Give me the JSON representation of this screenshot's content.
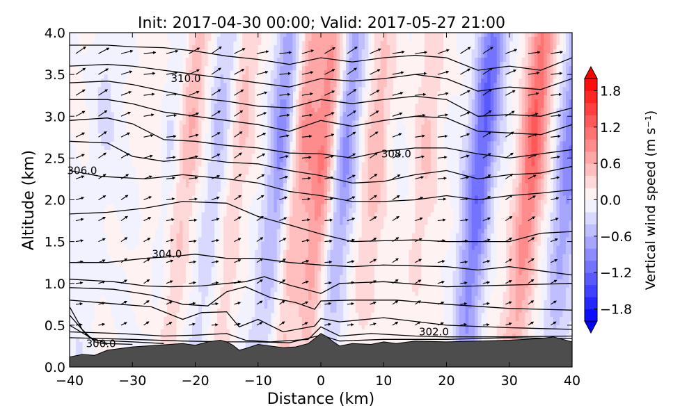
{
  "chart_data": {
    "type": "heatmap",
    "title": "Init: 2017-04-30 00:00; Valid: 2017-05-27 21:00",
    "xlabel": "Distance (km)",
    "ylabel": "Altitude (km)",
    "xlim": [
      -40,
      40
    ],
    "ylim": [
      0.0,
      4.0
    ],
    "x_ticks": [
      -40,
      -30,
      -20,
      -10,
      0,
      10,
      20,
      30,
      40
    ],
    "x_tick_labels": [
      "−40",
      "−30",
      "−20",
      "−10",
      "0",
      "10",
      "20",
      "30",
      "40"
    ],
    "y_ticks": [
      0.0,
      0.5,
      1.0,
      1.5,
      2.0,
      2.5,
      3.0,
      3.5,
      4.0
    ],
    "y_tick_labels": [
      "0.0",
      "0.5",
      "1.0",
      "1.5",
      "2.0",
      "2.5",
      "3.0",
      "3.5",
      "4.0"
    ],
    "colorbar": {
      "label": "Vertical wind speed (m s⁻¹)",
      "vmin": -2.0,
      "vmax": 2.0,
      "levels": [
        -2.0,
        -1.8,
        -1.6,
        -1.4,
        -1.2,
        -1.0,
        -0.8,
        -0.6,
        -0.4,
        -0.2,
        0.0,
        0.2,
        0.4,
        0.6,
        0.8,
        1.0,
        1.2,
        1.4,
        1.6,
        1.8,
        2.0
      ],
      "ticks": [
        -1.8,
        -1.2,
        -0.6,
        0.0,
        0.6,
        1.2,
        1.8
      ],
      "tick_labels": [
        "−1.8",
        "−1.2",
        "−0.6",
        "0.0",
        "0.6",
        "1.2",
        "1.8"
      ],
      "colormap": "bwr"
    },
    "updraft_bands": [
      {
        "x": -26,
        "amplitude": 0.35
      },
      {
        "x": -22,
        "amplitude": 0.6
      },
      {
        "x": -14,
        "amplitude": 0.5
      },
      {
        "x": -4,
        "amplitude": 0.8
      },
      {
        "x": 0,
        "amplitude": 1.0
      },
      {
        "x": 8,
        "amplitude": 0.5
      },
      {
        "x": 16,
        "amplitude": 0.35
      },
      {
        "x": 33,
        "amplitude": 1.2
      }
    ],
    "downdraft_bands": [
      {
        "x": -36,
        "amplitude": -0.2
      },
      {
        "x": -25,
        "amplitude": -0.5
      },
      {
        "x": -17,
        "amplitude": -0.5
      },
      {
        "x": -7,
        "amplitude": -0.9
      },
      {
        "x": 3,
        "amplitude": -0.9
      },
      {
        "x": 25,
        "amplitude": -1.3
      },
      {
        "x": 39,
        "amplitude": -0.9
      }
    ],
    "isentropes": [
      {
        "theta": 299.5,
        "points": [
          [
            -40,
            0.72
          ],
          [
            -38,
            0.45
          ],
          [
            -36,
            0.3
          ],
          [
            -34,
            0.27
          ]
        ]
      },
      {
        "theta": 300.0,
        "points": [
          [
            -40,
            0.62
          ],
          [
            -37,
            0.36
          ],
          [
            -34,
            0.28
          ],
          [
            -30,
            0.27
          ]
        ]
      },
      {
        "theta": 300.5,
        "points": [
          [
            -40,
            0.5
          ],
          [
            -36,
            0.32
          ],
          [
            -30,
            0.3
          ],
          [
            -25,
            0.28
          ]
        ]
      },
      {
        "theta": 301.0,
        "points": [
          [
            -40,
            0.35
          ],
          [
            -35,
            0.34
          ],
          [
            -30,
            0.33
          ],
          [
            -22,
            0.31
          ],
          [
            -15,
            0.3
          ],
          [
            -10,
            0.3
          ],
          [
            -5,
            0.29
          ],
          [
            0,
            0.38
          ],
          [
            3,
            0.31
          ],
          [
            10,
            0.33
          ],
          [
            20,
            0.33
          ],
          [
            30,
            0.35
          ],
          [
            40,
            0.34
          ]
        ]
      },
      {
        "theta": 302.0,
        "points": [
          [
            -40,
            0.42
          ],
          [
            -32,
            0.4
          ],
          [
            -25,
            0.37
          ],
          [
            -20,
            0.38
          ],
          [
            -15,
            0.4
          ],
          [
            -12,
            0.32
          ],
          [
            -8,
            0.3
          ],
          [
            -2,
            0.33
          ],
          [
            0,
            0.48
          ],
          [
            3,
            0.37
          ],
          [
            8,
            0.4
          ],
          [
            15,
            0.37
          ],
          [
            20,
            0.36
          ],
          [
            30,
            0.36
          ],
          [
            40,
            0.37
          ]
        ]
      },
      {
        "theta": 302.5,
        "points": [
          [
            -40,
            0.8
          ],
          [
            -32,
            0.75
          ],
          [
            -27,
            0.72
          ],
          [
            -22,
            0.57
          ],
          [
            -19,
            0.65
          ],
          [
            -15,
            0.66
          ],
          [
            -13,
            0.48
          ],
          [
            -10,
            0.57
          ],
          [
            -6,
            0.42
          ],
          [
            -1,
            0.49
          ],
          [
            0,
            0.58
          ],
          [
            3,
            0.54
          ],
          [
            10,
            0.59
          ],
          [
            20,
            0.5
          ],
          [
            30,
            0.47
          ],
          [
            40,
            0.45
          ]
        ]
      },
      {
        "theta": 303.0,
        "points": [
          [
            -40,
            0.95
          ],
          [
            -33,
            0.93
          ],
          [
            -27,
            0.86
          ],
          [
            -22,
            0.75
          ],
          [
            -18,
            0.73
          ],
          [
            -15,
            0.9
          ],
          [
            -12,
            0.96
          ],
          [
            -8,
            0.83
          ],
          [
            -4,
            0.77
          ],
          [
            -1,
            0.69
          ],
          [
            0,
            0.79
          ],
          [
            5,
            0.8
          ],
          [
            12,
            0.8
          ],
          [
            20,
            0.75
          ],
          [
            30,
            0.7
          ],
          [
            40,
            0.68
          ]
        ]
      },
      {
        "theta": 303.5,
        "points": [
          [
            -40,
            1.05
          ],
          [
            -33,
            1.02
          ],
          [
            -28,
            0.97
          ],
          [
            -24,
            0.96
          ],
          [
            -19,
            0.97
          ],
          [
            -15,
            1.0
          ],
          [
            -12,
            1.02
          ],
          [
            -9,
            1.08
          ],
          [
            -5,
            0.98
          ],
          [
            0,
            0.88
          ],
          [
            3,
            1.0
          ],
          [
            10,
            1.02
          ],
          [
            20,
            0.96
          ],
          [
            30,
            0.98
          ],
          [
            40,
            1.0
          ]
        ]
      },
      {
        "theta": 304.0,
        "points": [
          [
            -40,
            1.25
          ],
          [
            -34,
            1.25
          ],
          [
            -28,
            1.3
          ],
          [
            -24,
            1.32
          ],
          [
            -20,
            1.35
          ],
          [
            -15,
            1.3
          ],
          [
            -10,
            1.3
          ],
          [
            -5,
            1.25
          ],
          [
            0,
            1.22
          ],
          [
            5,
            1.2
          ],
          [
            10,
            1.22
          ],
          [
            20,
            1.2
          ],
          [
            25,
            1.16
          ],
          [
            30,
            1.2
          ],
          [
            40,
            1.1
          ]
        ]
      },
      {
        "theta": 305.0,
        "points": [
          [
            -40,
            1.83
          ],
          [
            -34,
            1.85
          ],
          [
            -28,
            1.9
          ],
          [
            -22,
            1.98
          ],
          [
            -15,
            1.96
          ],
          [
            -10,
            1.8
          ],
          [
            -5,
            1.7
          ],
          [
            0,
            1.59
          ],
          [
            5,
            1.5
          ],
          [
            10,
            1.51
          ],
          [
            15,
            1.52
          ],
          [
            20,
            1.5
          ],
          [
            25,
            1.5
          ],
          [
            30,
            1.5
          ],
          [
            35,
            1.6
          ],
          [
            40,
            1.62
          ]
        ]
      },
      {
        "theta": 306.0,
        "points": [
          [
            -40,
            2.35
          ],
          [
            -35,
            2.28
          ],
          [
            -28,
            2.25
          ],
          [
            -22,
            2.3
          ],
          [
            -15,
            2.25
          ],
          [
            -10,
            2.2
          ],
          [
            -5,
            2.1
          ],
          [
            0,
            2.05
          ],
          [
            5,
            1.98
          ],
          [
            10,
            1.98
          ],
          [
            15,
            2.0
          ],
          [
            20,
            2.05
          ],
          [
            25,
            2.0
          ],
          [
            30,
            2.05
          ],
          [
            35,
            2.08
          ],
          [
            40,
            2.12
          ]
        ]
      },
      {
        "theta": 307.0,
        "points": [
          [
            -40,
            2.7
          ],
          [
            -34,
            2.68
          ],
          [
            -30,
            2.52
          ],
          [
            -25,
            2.46
          ],
          [
            -20,
            2.5
          ],
          [
            -15,
            2.45
          ],
          [
            -10,
            2.43
          ],
          [
            -5,
            2.35
          ],
          [
            0,
            2.29
          ],
          [
            5,
            2.2
          ],
          [
            10,
            2.22
          ],
          [
            15,
            2.3
          ],
          [
            20,
            2.35
          ],
          [
            25,
            2.25
          ],
          [
            30,
            2.3
          ],
          [
            35,
            2.32
          ],
          [
            40,
            2.4
          ]
        ]
      },
      {
        "theta": 308.0,
        "points": [
          [
            -40,
            2.95
          ],
          [
            -34,
            2.98
          ],
          [
            -30,
            2.91
          ],
          [
            -25,
            2.72
          ],
          [
            -20,
            2.7
          ],
          [
            -15,
            2.65
          ],
          [
            -10,
            2.62
          ],
          [
            -5,
            2.56
          ],
          [
            0,
            2.55
          ],
          [
            5,
            2.5
          ],
          [
            10,
            2.58
          ],
          [
            15,
            2.62
          ],
          [
            20,
            2.62
          ],
          [
            25,
            2.55
          ],
          [
            30,
            2.5
          ],
          [
            35,
            2.55
          ],
          [
            40,
            2.6
          ]
        ]
      },
      {
        "theta": 309.0,
        "points": [
          [
            -40,
            3.2
          ],
          [
            -34,
            3.2
          ],
          [
            -30,
            3.15
          ],
          [
            -25,
            3.05
          ],
          [
            -20,
            3.0
          ],
          [
            -15,
            2.95
          ],
          [
            -10,
            2.9
          ],
          [
            -5,
            2.82
          ],
          [
            0,
            2.95
          ],
          [
            5,
            2.88
          ],
          [
            10,
            2.95
          ],
          [
            15,
            3.0
          ],
          [
            20,
            2.98
          ],
          [
            25,
            2.82
          ],
          [
            30,
            2.8
          ],
          [
            35,
            2.78
          ],
          [
            40,
            2.9
          ]
        ]
      },
      {
        "theta": 310.0,
        "points": [
          [
            -40,
            3.4
          ],
          [
            -34,
            3.42
          ],
          [
            -30,
            3.38
          ],
          [
            -25,
            3.3
          ],
          [
            -20,
            3.22
          ],
          [
            -15,
            3.18
          ],
          [
            -10,
            3.12
          ],
          [
            -5,
            3.1
          ],
          [
            0,
            3.2
          ],
          [
            5,
            3.15
          ],
          [
            10,
            3.2
          ],
          [
            15,
            3.24
          ],
          [
            20,
            3.2
          ],
          [
            25,
            3.0
          ],
          [
            30,
            3.02
          ],
          [
            35,
            3.0
          ],
          [
            40,
            3.1
          ]
        ]
      },
      {
        "theta": 311.0,
        "points": [
          [
            -40,
            3.6
          ],
          [
            -34,
            3.62
          ],
          [
            -30,
            3.6
          ],
          [
            -25,
            3.55
          ],
          [
            -20,
            3.5
          ],
          [
            -15,
            3.45
          ],
          [
            -10,
            3.4
          ],
          [
            -5,
            3.35
          ],
          [
            0,
            3.45
          ],
          [
            5,
            3.42
          ],
          [
            10,
            3.45
          ],
          [
            15,
            3.5
          ],
          [
            20,
            3.45
          ],
          [
            25,
            3.3
          ],
          [
            30,
            3.35
          ],
          [
            35,
            3.32
          ],
          [
            40,
            3.45
          ]
        ]
      },
      {
        "theta": 312.0,
        "points": [
          [
            -40,
            3.85
          ],
          [
            -34,
            3.85
          ],
          [
            -30,
            3.83
          ],
          [
            -25,
            3.82
          ],
          [
            -20,
            3.78
          ],
          [
            -15,
            3.72
          ],
          [
            -10,
            3.68
          ],
          [
            -5,
            3.62
          ],
          [
            0,
            3.7
          ],
          [
            5,
            3.65
          ],
          [
            10,
            3.7
          ],
          [
            15,
            3.73
          ],
          [
            20,
            3.7
          ],
          [
            25,
            3.55
          ],
          [
            30,
            3.6
          ],
          [
            35,
            3.55
          ],
          [
            40,
            3.7
          ]
        ]
      }
    ],
    "contour_labels": [
      {
        "text": "310.0",
        "x": -21.5,
        "y": 3.45
      },
      {
        "text": "308.0",
        "x": 12,
        "y": 2.55
      },
      {
        "text": "306.0",
        "x": -38,
        "y": 2.35
      },
      {
        "text": "304.0",
        "x": -24.5,
        "y": 1.35
      },
      {
        "text": "302.0",
        "x": 18,
        "y": 0.42
      },
      {
        "text": "300.0",
        "x": -35,
        "y": 0.28
      }
    ],
    "terrain": {
      "x": [
        -40,
        -38,
        -36,
        -34,
        -30,
        -26,
        -22,
        -20,
        -18,
        -16,
        -15,
        -14,
        -13,
        -12,
        -10,
        -8,
        -6,
        -4,
        -2,
        -1,
        0,
        1,
        2,
        3,
        5,
        8,
        10,
        12,
        15,
        20,
        25,
        30,
        35,
        37,
        40
      ],
      "height": [
        0.12,
        0.15,
        0.14,
        0.2,
        0.24,
        0.26,
        0.28,
        0.26,
        0.3,
        0.32,
        0.3,
        0.26,
        0.2,
        0.22,
        0.27,
        0.25,
        0.23,
        0.24,
        0.28,
        0.34,
        0.4,
        0.36,
        0.3,
        0.25,
        0.28,
        0.27,
        0.3,
        0.28,
        0.31,
        0.3,
        0.31,
        0.32,
        0.34,
        0.36,
        0.3
      ]
    }
  }
}
